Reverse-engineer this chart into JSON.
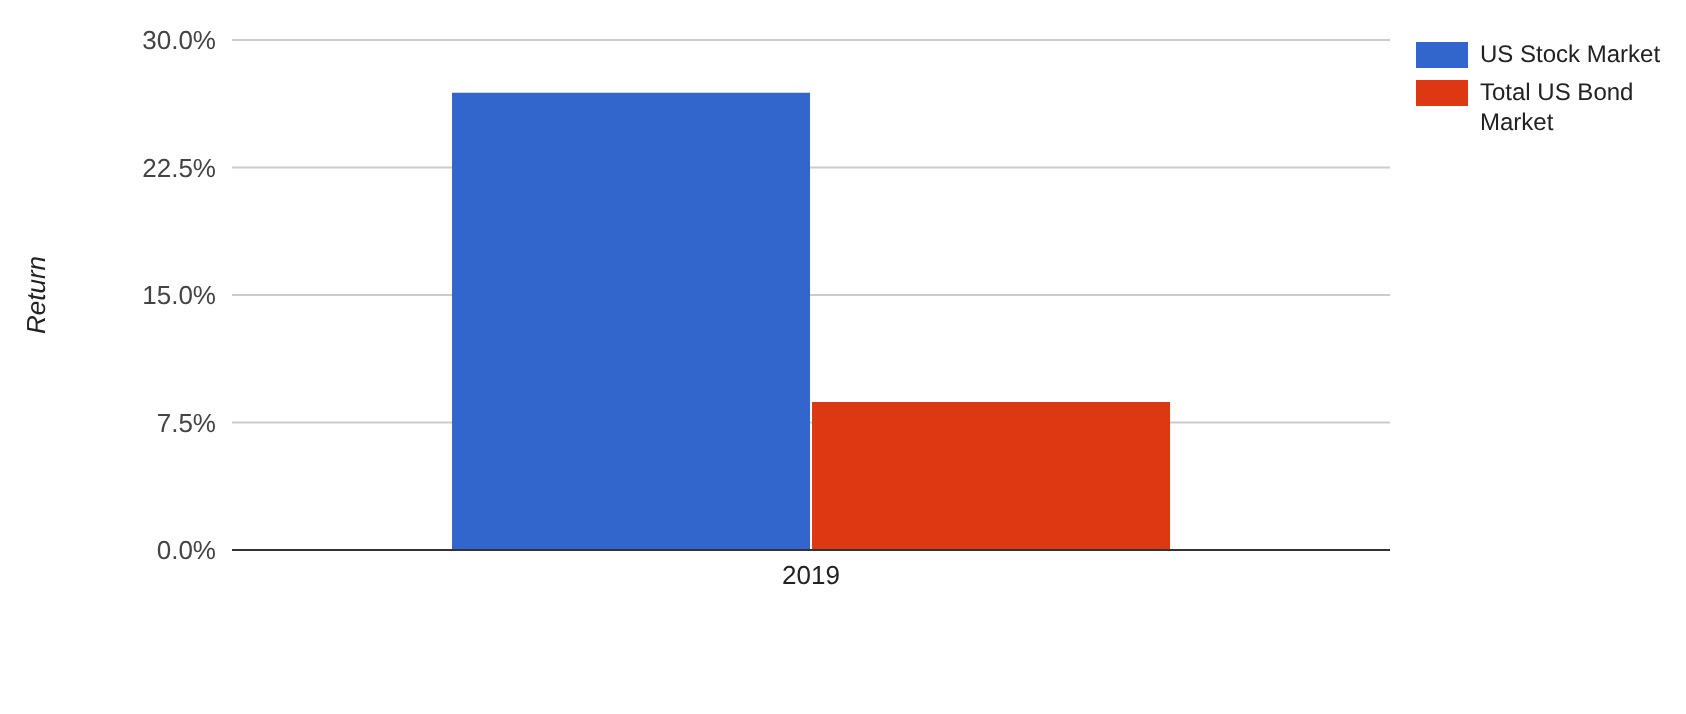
{
  "chart_data": {
    "type": "bar",
    "ylabel": "Return",
    "categories": [
      "2019"
    ],
    "series": [
      {
        "name": "US Stock Market",
        "color": "#3366cc",
        "values": [
          26.9
        ]
      },
      {
        "name": "Total US Bond Market",
        "color": "#dc3912",
        "values": [
          8.7
        ]
      }
    ],
    "ylim": [
      0,
      30
    ],
    "yticks": [
      {
        "value": 0,
        "label": "0.0%"
      },
      {
        "value": 7.5,
        "label": "7.5%"
      },
      {
        "value": 15,
        "label": "15.0%"
      },
      {
        "value": 22.5,
        "label": "22.5%"
      },
      {
        "value": 30,
        "label": "30.0%"
      }
    ],
    "grid": "y",
    "legend": "top right"
  }
}
